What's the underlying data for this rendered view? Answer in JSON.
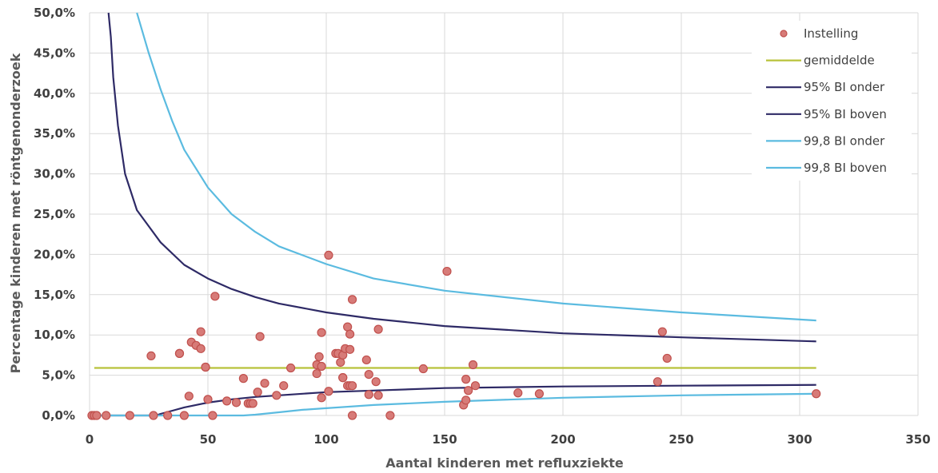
{
  "chart_data": {
    "type": "scatter",
    "xlabel": "Aantal kinderen met refluxziekte",
    "ylabel": "Percentage kinderen met röntgenonderzoek",
    "xlim": [
      0,
      350
    ],
    "ylim": [
      0,
      50
    ],
    "x_ticks": [
      0,
      50,
      100,
      150,
      200,
      250,
      300,
      350
    ],
    "x_tick_labels": [
      "0",
      "50",
      "100",
      "150",
      "200",
      "250",
      "300",
      "350"
    ],
    "y_ticks": [
      0,
      5,
      10,
      15,
      20,
      25,
      30,
      35,
      40,
      45,
      50
    ],
    "y_tick_labels": [
      "0,0%",
      "5,0%",
      "10,0%",
      "15,0%",
      "20,0%",
      "25,0%",
      "30,0%",
      "35,0%",
      "40,0%",
      "45,0%",
      "50,0%"
    ],
    "grid": true,
    "legend_position": "top-right",
    "series": [
      {
        "name": "Instelling",
        "kind": "scatter",
        "color": "#c0504d",
        "x": [
          1,
          2,
          3,
          7,
          17,
          26,
          27,
          33,
          38,
          38,
          40,
          42,
          43,
          45,
          47,
          47,
          49,
          49,
          50,
          52,
          53,
          58,
          62,
          65,
          67,
          68,
          69,
          71,
          72,
          74,
          79,
          82,
          85,
          96,
          96,
          97,
          98,
          98,
          98,
          101,
          101,
          104,
          105,
          106,
          107,
          107,
          107,
          108,
          109,
          109,
          110,
          110,
          110,
          111,
          111,
          111,
          117,
          118,
          118,
          121,
          122,
          122,
          127,
          141,
          151,
          158,
          159,
          159,
          160,
          162,
          163,
          181,
          190,
          240,
          242,
          244,
          307
        ],
        "y": [
          0,
          0,
          0,
          0,
          0,
          7.4,
          0,
          0,
          7.7,
          7.7,
          0,
          2.4,
          9.1,
          8.7,
          10.4,
          8.3,
          6,
          6,
          2,
          0,
          14.8,
          1.8,
          1.6,
          4.6,
          1.5,
          1.5,
          1.5,
          2.9,
          9.8,
          4,
          2.5,
          3.7,
          5.9,
          6.3,
          5.2,
          7.3,
          10.3,
          2.2,
          6.1,
          3,
          19.9,
          7.7,
          7.7,
          6.6,
          7.5,
          4.7,
          4.7,
          8.3,
          3.7,
          11,
          10.1,
          3.7,
          8.2,
          14.4,
          3.7,
          0,
          6.9,
          5.1,
          2.6,
          4.2,
          2.5,
          10.7,
          0,
          5.8,
          17.9,
          1.3,
          4.5,
          1.9,
          3.1,
          6.3,
          3.7,
          2.8,
          2.7,
          4.2,
          10.4,
          7.1,
          2.7
        ]
      },
      {
        "name": "gemiddelde",
        "kind": "line",
        "color": "#b8c23a",
        "x": [
          2,
          307
        ],
        "y": [
          5.9,
          5.9
        ]
      },
      {
        "name": "95% BI onder",
        "kind": "line",
        "color": "#2e2a66",
        "x": [
          2,
          28,
          30,
          35,
          40,
          50,
          60,
          70,
          80,
          90,
          100,
          120,
          150,
          200,
          250,
          307
        ],
        "y": [
          0,
          0,
          0.2,
          0.6,
          1.0,
          1.6,
          2.0,
          2.3,
          2.5,
          2.7,
          2.9,
          3.1,
          3.4,
          3.6,
          3.7,
          3.8
        ]
      },
      {
        "name": "95% BI boven",
        "kind": "line",
        "color": "#2e2a66",
        "x": [
          8,
          9,
          10,
          12,
          15,
          20,
          25,
          30,
          40,
          50,
          60,
          70,
          80,
          100,
          120,
          150,
          200,
          250,
          307
        ],
        "y": [
          50,
          47,
          42,
          36,
          30,
          25.5,
          23.5,
          21.5,
          18.7,
          17,
          15.7,
          14.7,
          13.9,
          12.8,
          12,
          11.1,
          10.2,
          9.7,
          9.2
        ]
      },
      {
        "name": "99,8 BI onder",
        "kind": "line",
        "color": "#5bbbe0",
        "x": [
          2,
          60,
          65,
          70,
          80,
          90,
          100,
          120,
          150,
          200,
          250,
          307
        ],
        "y": [
          0,
          0,
          0,
          0.1,
          0.4,
          0.7,
          0.9,
          1.3,
          1.7,
          2.2,
          2.5,
          2.7
        ]
      },
      {
        "name": "99,8 BI boven",
        "kind": "line",
        "color": "#5bbbe0",
        "x": [
          20,
          25,
          30,
          35,
          40,
          50,
          60,
          70,
          80,
          100,
          120,
          150,
          200,
          250,
          307
        ],
        "y": [
          50,
          45,
          40.5,
          36.5,
          33,
          28.3,
          25,
          22.8,
          21,
          18.8,
          17,
          15.5,
          13.9,
          12.8,
          11.8
        ]
      }
    ]
  }
}
